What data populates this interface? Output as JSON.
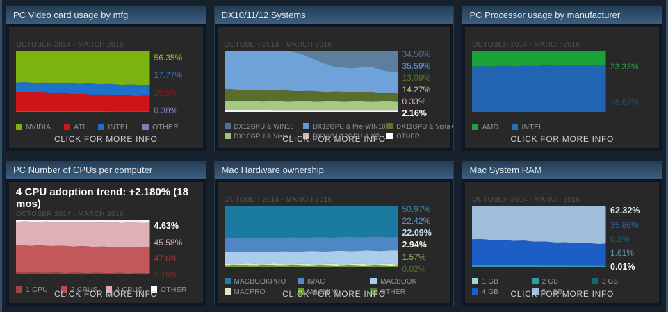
{
  "common": {
    "date_range": "OCTOBER 2014 - MARCH 2016",
    "more_info": "CLICK FOR MORE INFO"
  },
  "chart_data": [
    {
      "type": "area",
      "title": "PC Video card usage by mfg",
      "headline": null,
      "x_range": [
        "OCTOBER 2014",
        "MARCH 2016"
      ],
      "ylim": [
        0,
        100
      ],
      "unit": "percent",
      "stack_order": "top-to-bottom",
      "series": [
        {
          "name": "NVIDIA",
          "color": "#7db30f",
          "current": 56.35,
          "values": [
            51.5,
            52.3,
            53.0,
            53.8,
            54.6,
            55.5,
            56.35
          ]
        },
        {
          "name": "INTEL",
          "color": "#1e70c8",
          "current": 17.77,
          "values": [
            15.8,
            16.2,
            16.6,
            17.0,
            17.3,
            17.55,
            17.77
          ]
        },
        {
          "name": "ATI",
          "color": "#cd1518",
          "current": 25.5,
          "values": [
            32.2,
            31.0,
            29.9,
            28.7,
            27.6,
            26.5,
            25.5
          ]
        },
        {
          "name": "OTHER",
          "color": "#8f74bc",
          "current": 0.38,
          "values": [
            0.5,
            0.5,
            0.5,
            0.5,
            0.5,
            0.45,
            0.38
          ]
        }
      ],
      "percent_labels": [
        {
          "text": "56.35%",
          "color": "#9dc41b",
          "bold": false
        },
        {
          "text": "17.77%",
          "color": "#2e7fd6",
          "bold": false
        },
        {
          "text": "25.5%",
          "color": "#a21515",
          "bold": false
        },
        {
          "text": "0.38%",
          "color": "#9585c6",
          "bold": false
        }
      ],
      "legend": [
        {
          "name": "NVIDIA",
          "color": "#7db30f"
        },
        {
          "name": "ATI",
          "color": "#cd1518"
        },
        {
          "name": "INTEL",
          "color": "#1e70c8"
        },
        {
          "name": "OTHER",
          "color": "#8f74bc"
        }
      ]
    },
    {
      "type": "area",
      "title": "DX10/11/12 Systems",
      "headline": null,
      "x_range": [
        "OCTOBER 2014",
        "MARCH 2016"
      ],
      "ylim": [
        0,
        100
      ],
      "unit": "percent",
      "stack_order": "top-to-bottom",
      "series": [
        {
          "name": "DX12GPU & WIN10",
          "color": "#5e7e9e",
          "current": 34.56,
          "values": [
            0,
            0,
            0,
            0,
            0,
            6,
            18,
            26,
            29,
            25,
            32,
            34.56
          ]
        },
        {
          "name": "DX12GPU & Pre-WIN10",
          "color": "#6fa2d8",
          "current": 35.59,
          "values": [
            63.0,
            63.62,
            64.15,
            64.88,
            65.4,
            59.92,
            48.55,
            41.08,
            38.62,
            43.15,
            37.22,
            35.59
          ]
        },
        {
          "name": "DX11GPU & Vista+",
          "color": "#5b6d2c",
          "current": 13.09,
          "values": [
            19.5,
            19,
            18.5,
            18,
            17.5,
            17,
            16.5,
            16,
            15.5,
            15,
            14,
            13.09
          ]
        },
        {
          "name": "DX10GPU & Vista+",
          "color": "#a6c981",
          "current": 14.27,
          "values": [
            14.5,
            14.5,
            14.5,
            14.4,
            14.4,
            14.4,
            14.3,
            14.3,
            14.3,
            14.3,
            14.27,
            14.27
          ]
        },
        {
          "name": "DX10/11/12GPU & XP",
          "color": "#dcb2ae",
          "current": 0.33,
          "values": [
            0.6,
            0.58,
            0.55,
            0.52,
            0.5,
            0.48,
            0.45,
            0.42,
            0.4,
            0.38,
            0.35,
            0.33
          ]
        },
        {
          "name": "OTHER",
          "color": "#f2f2f2",
          "current": 2.16,
          "values": [
            2.4,
            2.3,
            2.3,
            2.2,
            2.2,
            2.2,
            2.2,
            2.2,
            2.18,
            2.17,
            2.16,
            2.16
          ]
        }
      ],
      "percent_labels": [
        {
          "text": "34.56%",
          "color": "#566f88",
          "bold": false
        },
        {
          "text": "35.59%",
          "color": "#5b9ade",
          "bold": false
        },
        {
          "text": "13.09%",
          "color": "#5e6e33",
          "bold": false
        },
        {
          "text": "14.27%",
          "color": "#b6d395",
          "bold": false
        },
        {
          "text": "0.33%",
          "color": "#dcb4b0",
          "bold": false
        },
        {
          "text": "2.16%",
          "color": "#ffffff",
          "bold": true
        }
      ],
      "legend": [
        {
          "name": "DX12GPU & WIN10",
          "color": "#4f7296"
        },
        {
          "name": "DX12GPU & Pre-WIN10",
          "color": "#5d9bd4"
        },
        {
          "name": "DX11GPU & Vista+",
          "color": "#5e7030"
        },
        {
          "name": "DX10GPU & Vista+",
          "color": "#9cc478"
        },
        {
          "name": "DX10/11/12GPU & XP",
          "color": "#e0b4b0"
        },
        {
          "name": "OTHER",
          "color": "#ffffff"
        }
      ]
    },
    {
      "type": "area",
      "title": "PC Processor usage by manufacturer",
      "headline": null,
      "x_range": [
        "OCTOBER 2014",
        "MARCH 2016"
      ],
      "ylim": [
        0,
        100
      ],
      "unit": "percent",
      "stack_order": "top-to-bottom",
      "series": [
        {
          "name": "AMD",
          "color": "#18a238",
          "current": 23.33,
          "values": [
            25.8,
            25.4,
            25.0,
            24.6,
            24.2,
            23.8,
            23.33
          ]
        },
        {
          "name": "INTEL",
          "color": "#2263b2",
          "current": 76.67,
          "values": [
            74.2,
            74.6,
            75.0,
            75.4,
            75.8,
            76.2,
            76.67
          ]
        }
      ],
      "percent_labels": [
        {
          "text": "23.33%",
          "color": "#25a743",
          "bold": false
        },
        {
          "text": "76.67%",
          "color": "#2b4a70",
          "bold": false
        }
      ],
      "legend": [
        {
          "name": "AMD",
          "color": "#1fa23c"
        },
        {
          "name": "INTEL",
          "color": "#2e6eb8"
        }
      ]
    },
    {
      "type": "area",
      "title": "PC Number of CPUs per computer",
      "headline": "4 CPU adoption trend: +2.180% (18 mos)",
      "x_range": [
        "OCTOBER 2014",
        "MARCH 2016"
      ],
      "ylim": [
        0,
        100
      ],
      "unit": "percent",
      "stack_order": "top-to-bottom",
      "series": [
        {
          "name": "OTHER",
          "color": "#f5f5f5",
          "current": 4.63,
          "values": [
            2.6,
            2.7,
            2.8,
            3.0,
            3.2,
            3.6,
            4.0,
            4.3,
            4.63
          ]
        },
        {
          "name": "4 CPUS",
          "color": "#deb0b8",
          "current": 45.58,
          "values": [
            43.4,
            43.7,
            43.9,
            44.3,
            44.6,
            44.9,
            45.2,
            45.4,
            45.58
          ]
        },
        {
          "name": "2 CPUS",
          "color": "#c4595b",
          "current": 47.6,
          "values": [
            50.4,
            50.0,
            49.8,
            49.3,
            49.0,
            48.4,
            48.0,
            47.8,
            47.6
          ]
        },
        {
          "name": "1 CPU",
          "color": "#9d4343",
          "current": 2.19,
          "values": [
            3.6,
            3.4,
            3.2,
            3.0,
            2.8,
            2.6,
            2.4,
            2.3,
            2.19
          ]
        }
      ],
      "percent_labels": [
        {
          "text": "4.63%",
          "color": "#ffffff",
          "bold": true
        },
        {
          "text": "45.58%",
          "color": "#dcacb4",
          "bold": false
        },
        {
          "text": "47.6%",
          "color": "#a63a3a",
          "bold": false
        },
        {
          "text": "2.19%",
          "color": "#832f2f",
          "bold": false
        }
      ],
      "legend": [
        {
          "name": "1 CPU",
          "color": "#a04848"
        },
        {
          "name": "2 CPUS",
          "color": "#c04a4a"
        },
        {
          "name": "4 CPUS",
          "color": "#e2aab4"
        },
        {
          "name": "OTHER",
          "color": "#ffffff"
        }
      ]
    },
    {
      "type": "area",
      "title": "Mac Hardware ownership",
      "headline": null,
      "x_range": [
        "OCTOBER 2014",
        "MARCH 2016"
      ],
      "ylim": [
        0,
        100
      ],
      "unit": "percent",
      "stack_order": "top-to-bottom",
      "series": [
        {
          "name": "MACBOOKPRO",
          "color": "#1a7ba0",
          "current": 50.97,
          "values": [
            52.8,
            52.5,
            52.3,
            52.0,
            51.8,
            51.5,
            51.3,
            51.1,
            50.97
          ]
        },
        {
          "name": "IMAC",
          "color": "#4f86c6",
          "current": 22.42,
          "values": [
            23.2,
            23.1,
            23.0,
            22.9,
            22.8,
            22.7,
            22.6,
            22.5,
            22.42
          ]
        },
        {
          "name": "MACBOOK",
          "color": "#a9cdea",
          "current": 22.09,
          "values": [
            19.2,
            19.6,
            20.0,
            20.5,
            20.9,
            21.3,
            21.6,
            21.9,
            22.09
          ]
        },
        {
          "name": "MACPRO",
          "color": "#e3ead0",
          "current": 2.94,
          "values": [
            2.8,
            2.8,
            2.85,
            2.85,
            2.9,
            2.9,
            2.9,
            2.92,
            2.94
          ]
        },
        {
          "name": "MACMINI",
          "color": "#68a032",
          "current": 1.57,
          "values": [
            1.95,
            1.95,
            1.8,
            1.7,
            1.55,
            1.56,
            1.56,
            1.56,
            1.57
          ]
        },
        {
          "name": "OTHER",
          "color": "#4c7c28",
          "current": 0.02,
          "values": [
            0.05,
            0.05,
            0.05,
            0.05,
            0.05,
            0.04,
            0.04,
            0.02,
            0.02
          ]
        }
      ],
      "percent_labels": [
        {
          "text": "50.97%",
          "color": "#2a8cb0",
          "bold": false
        },
        {
          "text": "22.42%",
          "color": "#6096ce",
          "bold": false
        },
        {
          "text": "22.09%",
          "color": "#bed9ef",
          "bold": true
        },
        {
          "text": "2.94%",
          "color": "#eaf0de",
          "bold": true
        },
        {
          "text": "1.57%",
          "color": "#90b35f",
          "bold": false
        },
        {
          "text": "0.02%",
          "color": "#567430",
          "bold": false
        }
      ],
      "legend": [
        {
          "name": "MACBOOKPRO",
          "color": "#1f81a8"
        },
        {
          "name": "IMAC",
          "color": "#5088c8"
        },
        {
          "name": "MACBOOK",
          "color": "#a8cce9"
        },
        {
          "name": "MACPRO",
          "color": "#dfe8c4"
        },
        {
          "name": "MACMINI",
          "color": "#6aa032"
        },
        {
          "name": "OTHER",
          "color": "#4e7c2a"
        }
      ]
    },
    {
      "type": "area",
      "title": "Mac System RAM",
      "headline": null,
      "x_range": [
        "OCTOBER 2014",
        "MARCH 2016"
      ],
      "ylim": [
        0,
        100
      ],
      "unit": "percent",
      "stack_order": "top-to-bottom",
      "series": [
        {
          "name": "5+ GB",
          "color": "#a0bddc",
          "current": 62.32,
          "values": [
            54.5,
            55.5,
            56.5,
            57.5,
            58.6,
            59.7,
            60.7,
            61.6,
            62.32
          ]
        },
        {
          "name": "4 GB",
          "color": "#1c5ec6",
          "current": 35.86,
          "values": [
            42.6,
            41.7,
            40.8,
            39.9,
            38.9,
            37.9,
            37.0,
            36.2,
            35.86
          ]
        },
        {
          "name": "3 GB",
          "color": "#156a72",
          "current": 0.2,
          "values": [
            0.38,
            0.36,
            0.34,
            0.32,
            0.3,
            0.28,
            0.26,
            0.23,
            0.2
          ]
        },
        {
          "name": "2 GB",
          "color": "#2f9aa2",
          "current": 1.61,
          "values": [
            2.45,
            2.37,
            2.3,
            2.22,
            2.15,
            2.07,
            1.99,
            1.93,
            1.61
          ]
        },
        {
          "name": "1 GB",
          "color": "#9fd8da",
          "current": 0.01,
          "values": [
            0.07,
            0.07,
            0.06,
            0.06,
            0.05,
            0.05,
            0.05,
            0.04,
            0.01
          ]
        }
      ],
      "percent_labels": [
        {
          "text": "62.32%",
          "color": "#e8edf2",
          "bold": true
        },
        {
          "text": "35.86%",
          "color": "#2d65b4",
          "bold": false
        },
        {
          "text": "0.2%",
          "color": "#206067",
          "bold": false
        },
        {
          "text": "1.61%",
          "color": "#5c98a0",
          "bold": false
        },
        {
          "text": "0.01%",
          "color": "#ffffff",
          "bold": true
        }
      ],
      "legend": [
        {
          "name": "1 GB",
          "color": "#9fd8da"
        },
        {
          "name": "2 GB",
          "color": "#2f9aa2"
        },
        {
          "name": "3 GB",
          "color": "#156a72"
        },
        {
          "name": "4 GB",
          "color": "#1c5ec6"
        },
        {
          "name": "5+ GB",
          "color": "#a0bddc"
        }
      ]
    }
  ]
}
